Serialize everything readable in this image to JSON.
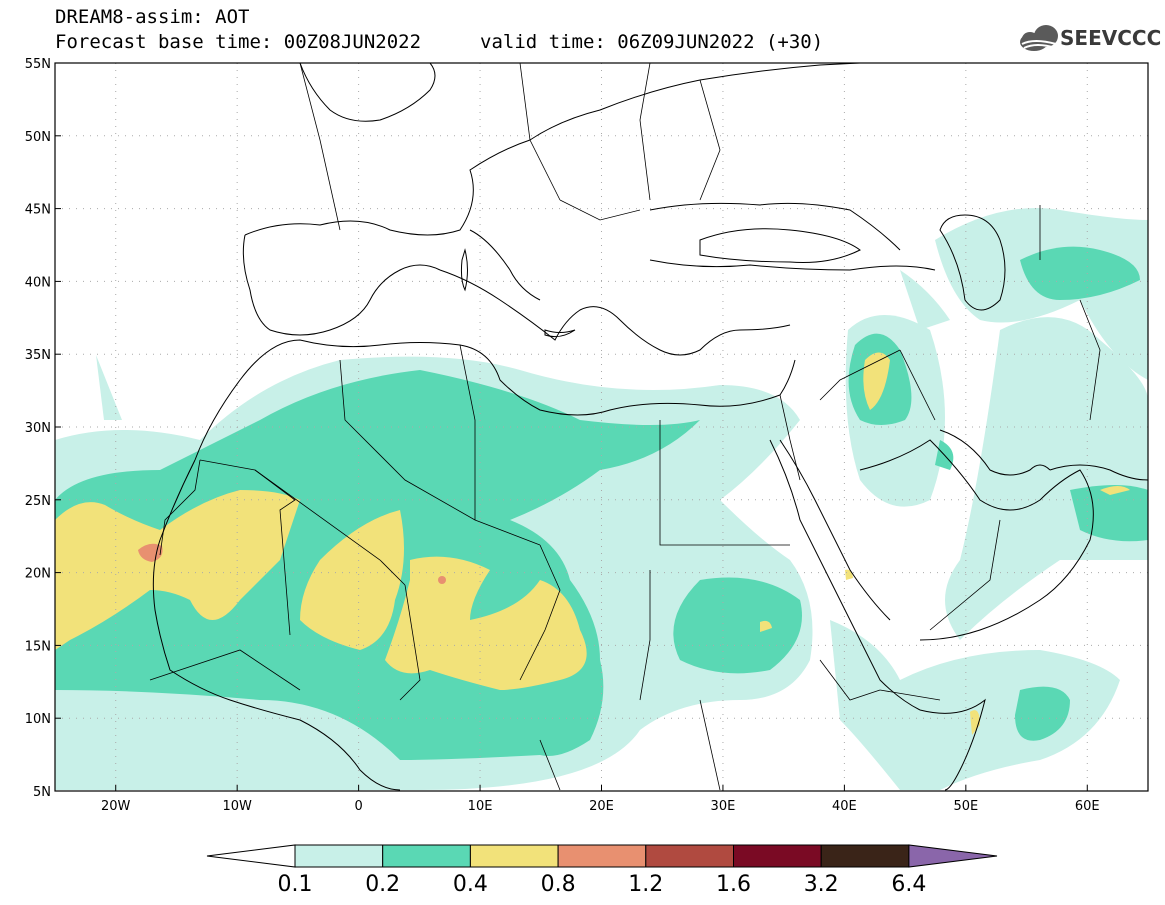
{
  "header": {
    "title": "DREAM8-assim: AOT",
    "base_time": "Forecast base time: 00Z08JUN2022",
    "valid_time": "valid time: 06Z09JUN2022 (+30)"
  },
  "logo": {
    "text": "SEEVCCC",
    "icon": "cloud-icon"
  },
  "map": {
    "lon_range": [
      -25,
      65
    ],
    "lat_range": [
      5,
      55
    ],
    "lon_ticks": [
      {
        "lon": -20,
        "label": "20W"
      },
      {
        "lon": -10,
        "label": "10W"
      },
      {
        "lon": 0,
        "label": "0"
      },
      {
        "lon": 10,
        "label": "10E"
      },
      {
        "lon": 20,
        "label": "20E"
      },
      {
        "lon": 30,
        "label": "30E"
      },
      {
        "lon": 40,
        "label": "40E"
      },
      {
        "lon": 50,
        "label": "50E"
      },
      {
        "lon": 60,
        "label": "60E"
      }
    ],
    "lat_ticks": [
      {
        "lat": 5,
        "label": "5N"
      },
      {
        "lat": 10,
        "label": "10N"
      },
      {
        "lat": 15,
        "label": "15N"
      },
      {
        "lat": 20,
        "label": "20N"
      },
      {
        "lat": 25,
        "label": "25N"
      },
      {
        "lat": 30,
        "label": "30N"
      },
      {
        "lat": 35,
        "label": "35N"
      },
      {
        "lat": 40,
        "label": "40N"
      },
      {
        "lat": 45,
        "label": "45N"
      },
      {
        "lat": 50,
        "label": "50N"
      },
      {
        "lat": 55,
        "label": "55N"
      }
    ],
    "grid": "dotted"
  },
  "colorbar": {
    "colors": [
      "#c8f0e8",
      "#5ad8b4",
      "#f2e27a",
      "#e89070",
      "#b04a40",
      "#7a0a24",
      "#3a2418",
      "#8a66aa"
    ],
    "labels": [
      "0.1",
      "0.2",
      "0.4",
      "0.8",
      "1.2",
      "1.6",
      "3.2",
      "6.4"
    ]
  }
}
